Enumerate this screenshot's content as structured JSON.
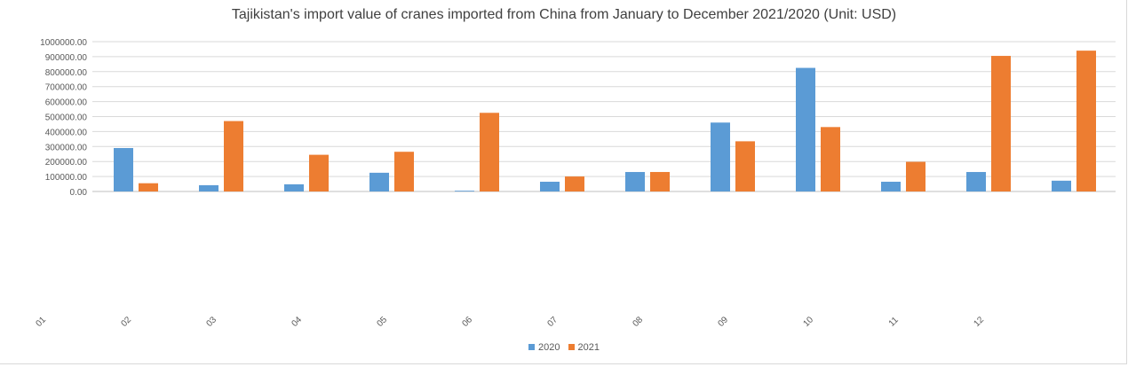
{
  "chart_data": {
    "type": "bar",
    "title": "Tajikistan's import value of cranes imported from China from January to December 2021/2020 (Unit: USD)",
    "categories": [
      "01",
      "02",
      "03",
      "04",
      "05",
      "06",
      "07",
      "08",
      "09",
      "10",
      "11",
      "12"
    ],
    "series": [
      {
        "name": "2020",
        "color": "#5B9BD5",
        "values": [
          290000,
          42000,
          48000,
          125000,
          5000,
          65000,
          130000,
          460000,
          825000,
          65000,
          130000,
          72000
        ]
      },
      {
        "name": "2021",
        "color": "#ED7D31",
        "values": [
          55000,
          470000,
          245000,
          265000,
          525000,
          100000,
          130000,
          335000,
          430000,
          198000,
          905000,
          940000
        ]
      }
    ],
    "ylim": [
      0,
      1000000
    ],
    "yticks": [
      "0.00",
      "100000.00",
      "200000.00",
      "300000.00",
      "400000.00",
      "500000.00",
      "600000.00",
      "700000.00",
      "800000.00",
      "900000.00",
      "1000000.00"
    ],
    "grid": true,
    "legend_position": "bottom"
  }
}
